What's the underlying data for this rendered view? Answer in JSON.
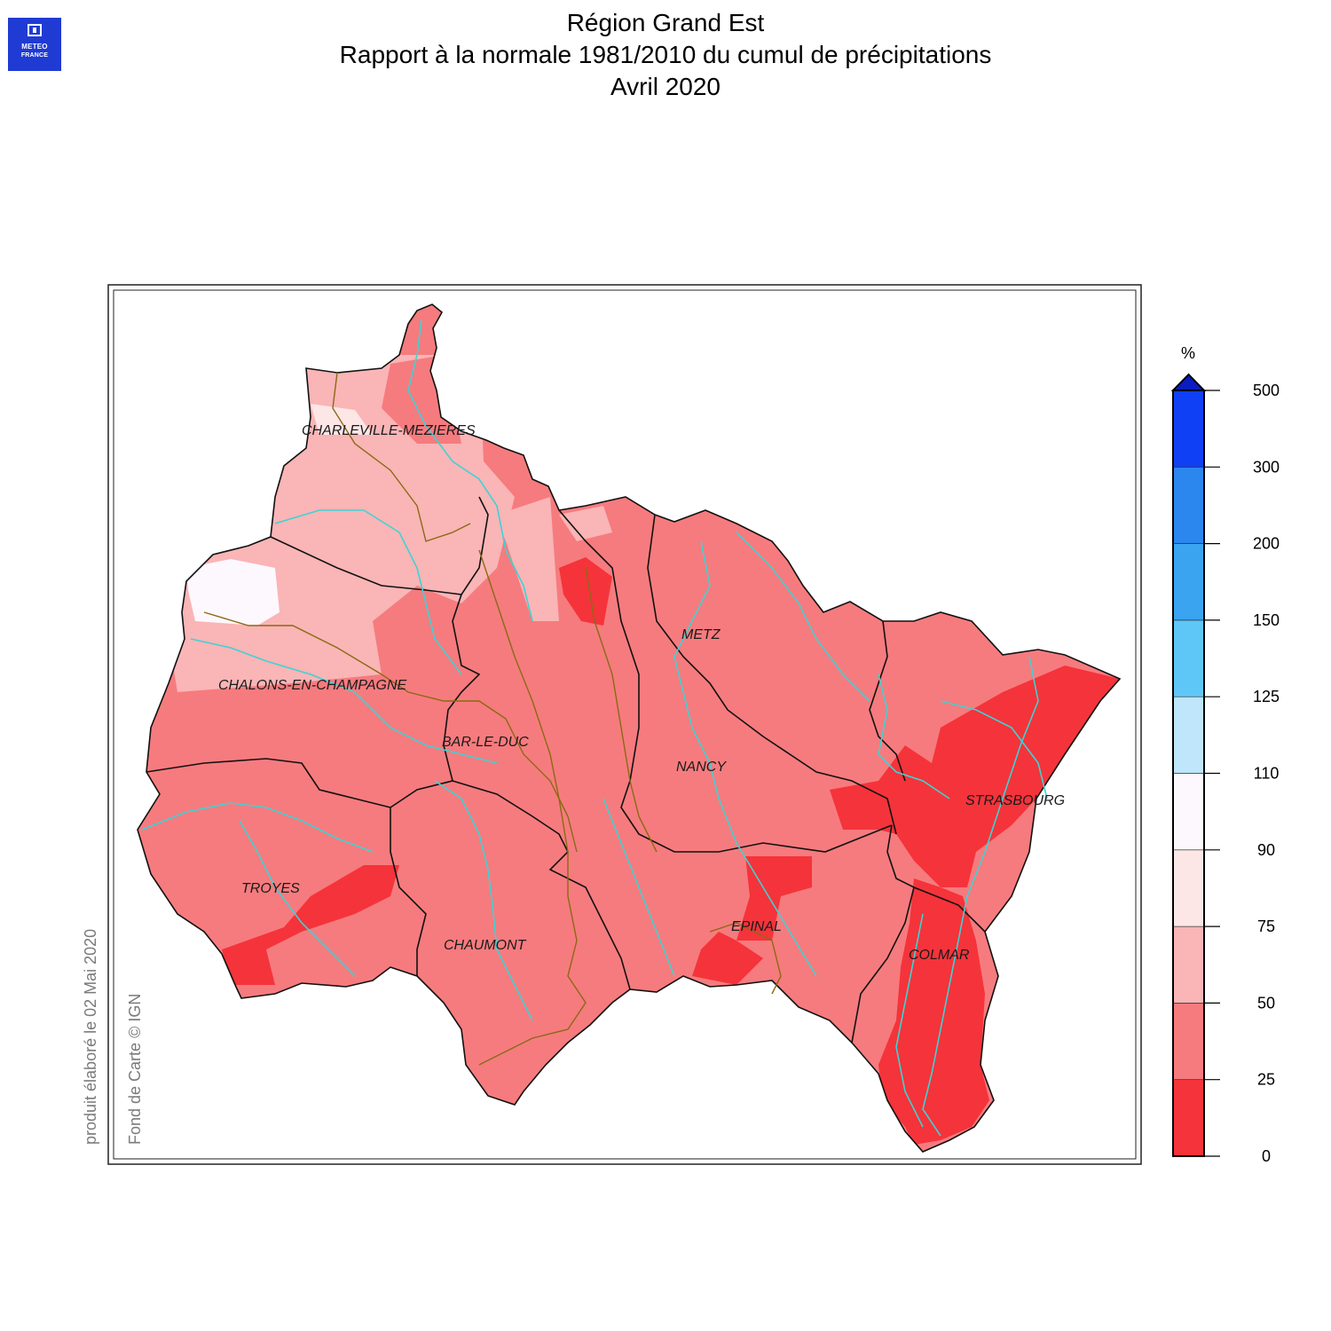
{
  "logo": {
    "line1": "METEO",
    "line2": "FRANCE",
    "color": "#1f3bd4"
  },
  "title": {
    "line1": "Région Grand Est",
    "line2": "Rapport à la normale 1981/2010 du cumul de précipitations",
    "line3": "Avril 2020"
  },
  "credits": {
    "produced": "produit élaboré le 02 Mai 2020",
    "basemap": "Fond de Carte © IGN"
  },
  "cities": [
    "CHARLEVILLE-MEZIERES",
    "METZ",
    "CHALONS-EN-CHAMPAGNE",
    "BAR-LE-DUC",
    "NANCY",
    "STRASBOURG",
    "TROYES",
    "EPINAL",
    "CHAUMONT",
    "COLMAR"
  ],
  "legend": {
    "unit": "%",
    "ticks": [
      "0",
      "25",
      "50",
      "75",
      "90",
      "110",
      "125",
      "150",
      "200",
      "300",
      "500"
    ],
    "classes": [
      {
        "range": "0-25",
        "color": "#f5333a"
      },
      {
        "range": "25-50",
        "color": "#f67b7e"
      },
      {
        "range": "50-75",
        "color": "#fab5b6"
      },
      {
        "range": "75-90",
        "color": "#fde6e6"
      },
      {
        "range": "90-110",
        "color": "#fdf8fd"
      },
      {
        "range": "110-125",
        "color": "#bfe6fb"
      },
      {
        "range": "125-150",
        "color": "#5fc7f8"
      },
      {
        "range": "150-200",
        "color": "#3aa4f1"
      },
      {
        "range": "200-300",
        "color": "#2b86ed"
      },
      {
        "range": "300-500",
        "color": "#1040f5"
      }
    ],
    "overflow_color": "#0b1cc0"
  },
  "colors": {
    "river": "#3cd3d6",
    "boundary": "#111111",
    "sub_boundary": "#8a6a14",
    "frame": "#222222"
  }
}
